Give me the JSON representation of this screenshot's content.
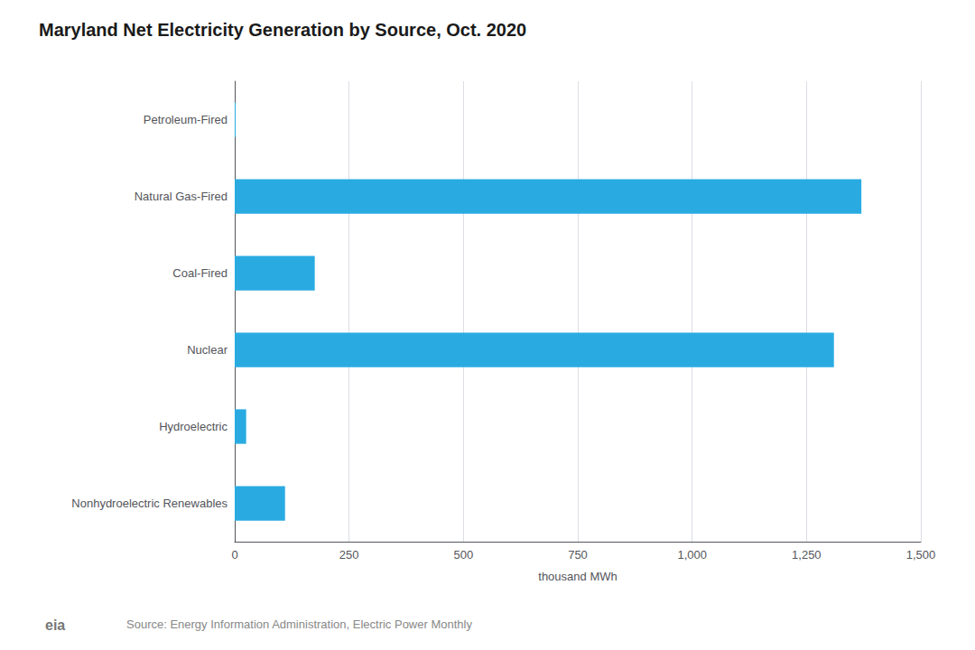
{
  "chart_data": {
    "type": "bar",
    "orientation": "horizontal",
    "title": "Maryland Net Electricity Generation by Source, Oct. 2020",
    "categories": [
      "Petroleum-Fired",
      "Natural Gas-Fired",
      "Coal-Fired",
      "Nuclear",
      "Hydroelectric",
      "Nonhydroelectric Renewables"
    ],
    "values": [
      2,
      1370,
      175,
      1310,
      25,
      110
    ],
    "color": "#29abe2",
    "xlabel": "thousand MWh",
    "xlim": [
      0,
      1500
    ],
    "xticks": [
      0,
      250,
      500,
      750,
      {
        "value": 1000,
        "label": "1,000"
      },
      {
        "value": 1250,
        "label": "1,250"
      },
      {
        "value": 1500,
        "label": "1,500"
      }
    ],
    "grid": true,
    "annotations": [
      "Source: Energy Information Administration, Electric Power Monthly",
      "eia"
    ]
  }
}
